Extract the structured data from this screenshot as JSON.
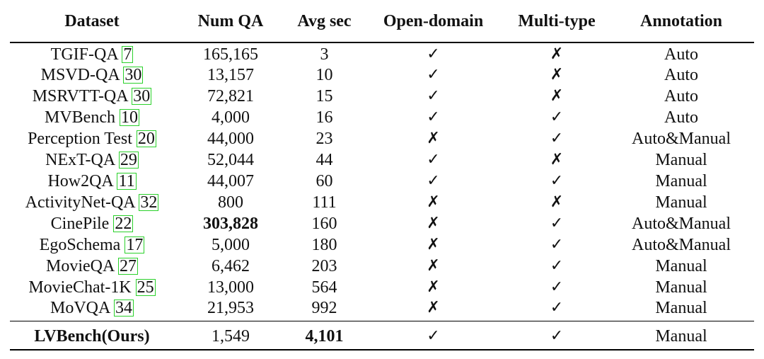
{
  "table": {
    "headers": [
      "Dataset",
      "Num QA",
      "Avg sec",
      "Open-domain",
      "Multi-type",
      "Annotation"
    ],
    "rows": [
      {
        "name": "TGIF-QA",
        "ref": "7",
        "num_qa": "165,165",
        "avg_sec": "3",
        "open_domain": "✓",
        "multi_type": "✗",
        "annotation": "Auto"
      },
      {
        "name": "MSVD-QA",
        "ref": "30",
        "num_qa": "13,157",
        "avg_sec": "10",
        "open_domain": "✓",
        "multi_type": "✗",
        "annotation": "Auto"
      },
      {
        "name": "MSRVTT-QA",
        "ref": "30",
        "num_qa": "72,821",
        "avg_sec": "15",
        "open_domain": "✓",
        "multi_type": "✗",
        "annotation": "Auto"
      },
      {
        "name": "MVBench",
        "ref": "10",
        "num_qa": "4,000",
        "avg_sec": "16",
        "open_domain": "✓",
        "multi_type": "✓",
        "annotation": "Auto"
      },
      {
        "name": "Perception Test",
        "ref": "20",
        "num_qa": "44,000",
        "avg_sec": "23",
        "open_domain": "✗",
        "multi_type": "✓",
        "annotation": "Auto&Manual"
      },
      {
        "name": "NExT-QA",
        "ref": "29",
        "num_qa": "52,044",
        "avg_sec": "44",
        "open_domain": "✓",
        "multi_type": "✗",
        "annotation": "Manual"
      },
      {
        "name": "How2QA",
        "ref": "11",
        "num_qa": "44,007",
        "avg_sec": "60",
        "open_domain": "✓",
        "multi_type": "✓",
        "annotation": "Manual"
      },
      {
        "name": "ActivityNet-QA",
        "ref": "32",
        "num_qa": "800",
        "avg_sec": "111",
        "open_domain": "✗",
        "multi_type": "✗",
        "annotation": "Manual"
      },
      {
        "name": "CinePile",
        "ref": "22",
        "num_qa": "303,828",
        "avg_sec": "160",
        "open_domain": "✗",
        "multi_type": "✓",
        "annotation": "Auto&Manual",
        "bold_num_qa": true
      },
      {
        "name": "EgoSchema",
        "ref": "17",
        "num_qa": "5,000",
        "avg_sec": "180",
        "open_domain": "✗",
        "multi_type": "✓",
        "annotation": "Auto&Manual"
      },
      {
        "name": "MovieQA",
        "ref": "27",
        "num_qa": "6,462",
        "avg_sec": "203",
        "open_domain": "✗",
        "multi_type": "✓",
        "annotation": "Manual"
      },
      {
        "name": "MovieChat-1K",
        "ref": "25",
        "num_qa": "13,000",
        "avg_sec": "564",
        "open_domain": "✗",
        "multi_type": "✓",
        "annotation": "Manual"
      },
      {
        "name": "MoVQA",
        "ref": "34",
        "num_qa": "21,953",
        "avg_sec": "992",
        "open_domain": "✗",
        "multi_type": "✓",
        "annotation": "Manual"
      }
    ],
    "ours": {
      "name": "LVBench(Ours)",
      "num_qa": "1,549",
      "avg_sec": "4,101",
      "open_domain": "✓",
      "multi_type": "✓",
      "annotation": "Manual"
    }
  }
}
